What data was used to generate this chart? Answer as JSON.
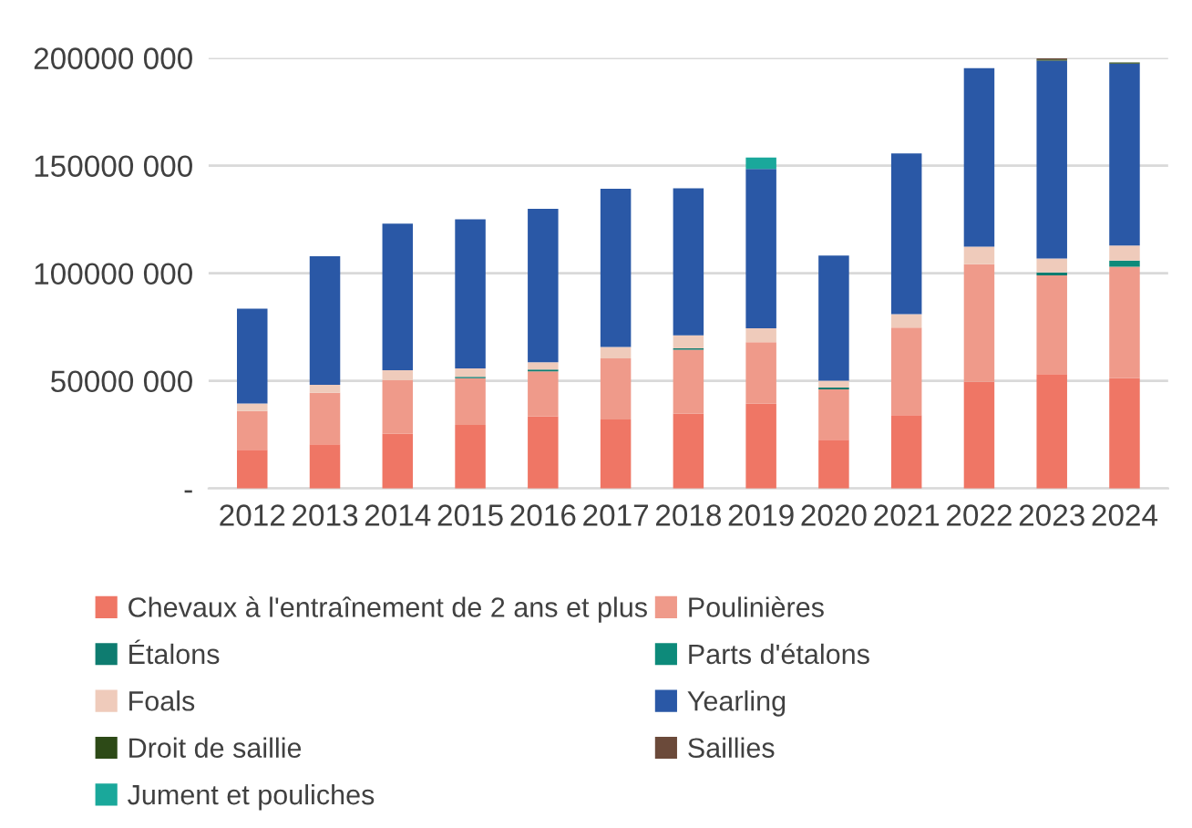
{
  "chart_data": {
    "type": "bar",
    "stacked": true,
    "categories": [
      "2012",
      "2013",
      "2014",
      "2015",
      "2016",
      "2017",
      "2018",
      "2019",
      "2020",
      "2021",
      "2022",
      "2023",
      "2024"
    ],
    "series": [
      {
        "name": "Chevaux à l'entraînement de 2 ans et plus",
        "color": "#ef7665",
        "values": [
          18000000,
          20500000,
          25500000,
          29500000,
          33600000,
          32100000,
          34700000,
          39400000,
          22600000,
          34100000,
          49500000,
          53200000,
          51200000
        ]
      },
      {
        "name": "Poulinières",
        "color": "#ef9a8a",
        "values": [
          18000000,
          24000000,
          24800000,
          21700000,
          20800000,
          28400000,
          29800000,
          28600000,
          23400000,
          40600000,
          54700000,
          45800000,
          51800000
        ]
      },
      {
        "name": "Étalons",
        "color": "#0e7c70",
        "values": [
          0,
          0,
          0,
          700000,
          900000,
          0,
          600000,
          0,
          900000,
          0,
          0,
          1400000,
          0
        ]
      },
      {
        "name": "Parts d'étalons",
        "color": "#0d8a7a",
        "values": [
          0,
          0,
          0,
          0,
          0,
          0,
          0,
          0,
          0,
          0,
          0,
          0,
          2900000
        ]
      },
      {
        "name": "Foals",
        "color": "#efcbbb",
        "values": [
          3500000,
          3700000,
          4700000,
          3900000,
          3400000,
          5200000,
          6100000,
          6400000,
          3200000,
          6300000,
          8100000,
          6400000,
          7000000
        ]
      },
      {
        "name": "Yearling",
        "color": "#2a58a6",
        "values": [
          44000000,
          59700000,
          68000000,
          69200000,
          71200000,
          73500000,
          68300000,
          74100000,
          58100000,
          74700000,
          83000000,
          92000000,
          84500000
        ]
      },
      {
        "name": "Droit de saillie",
        "color": "#2d4a17",
        "values": [
          0,
          0,
          0,
          0,
          0,
          0,
          0,
          0,
          0,
          0,
          0,
          500000,
          500000
        ]
      },
      {
        "name": "Saillies",
        "color": "#6b4a3a",
        "values": [
          0,
          0,
          0,
          0,
          0,
          0,
          0,
          0,
          0,
          0,
          0,
          500000,
          0
        ]
      },
      {
        "name": "Jument et pouliches",
        "color": "#1aa89b",
        "values": [
          0,
          0,
          0,
          0,
          0,
          0,
          0,
          5200000,
          0,
          0,
          0,
          0,
          0
        ]
      }
    ],
    "ylim": [
      0,
      200000000
    ],
    "yticks": [
      {
        "value": 0,
        "label": "-"
      },
      {
        "value": 50000000,
        "label": "50000 000"
      },
      {
        "value": 100000000,
        "label": "100000 000"
      },
      {
        "value": 150000000,
        "label": "150000 000"
      },
      {
        "value": 200000000,
        "label": "200000 000"
      }
    ],
    "grid": "y",
    "legend": "bottom"
  }
}
